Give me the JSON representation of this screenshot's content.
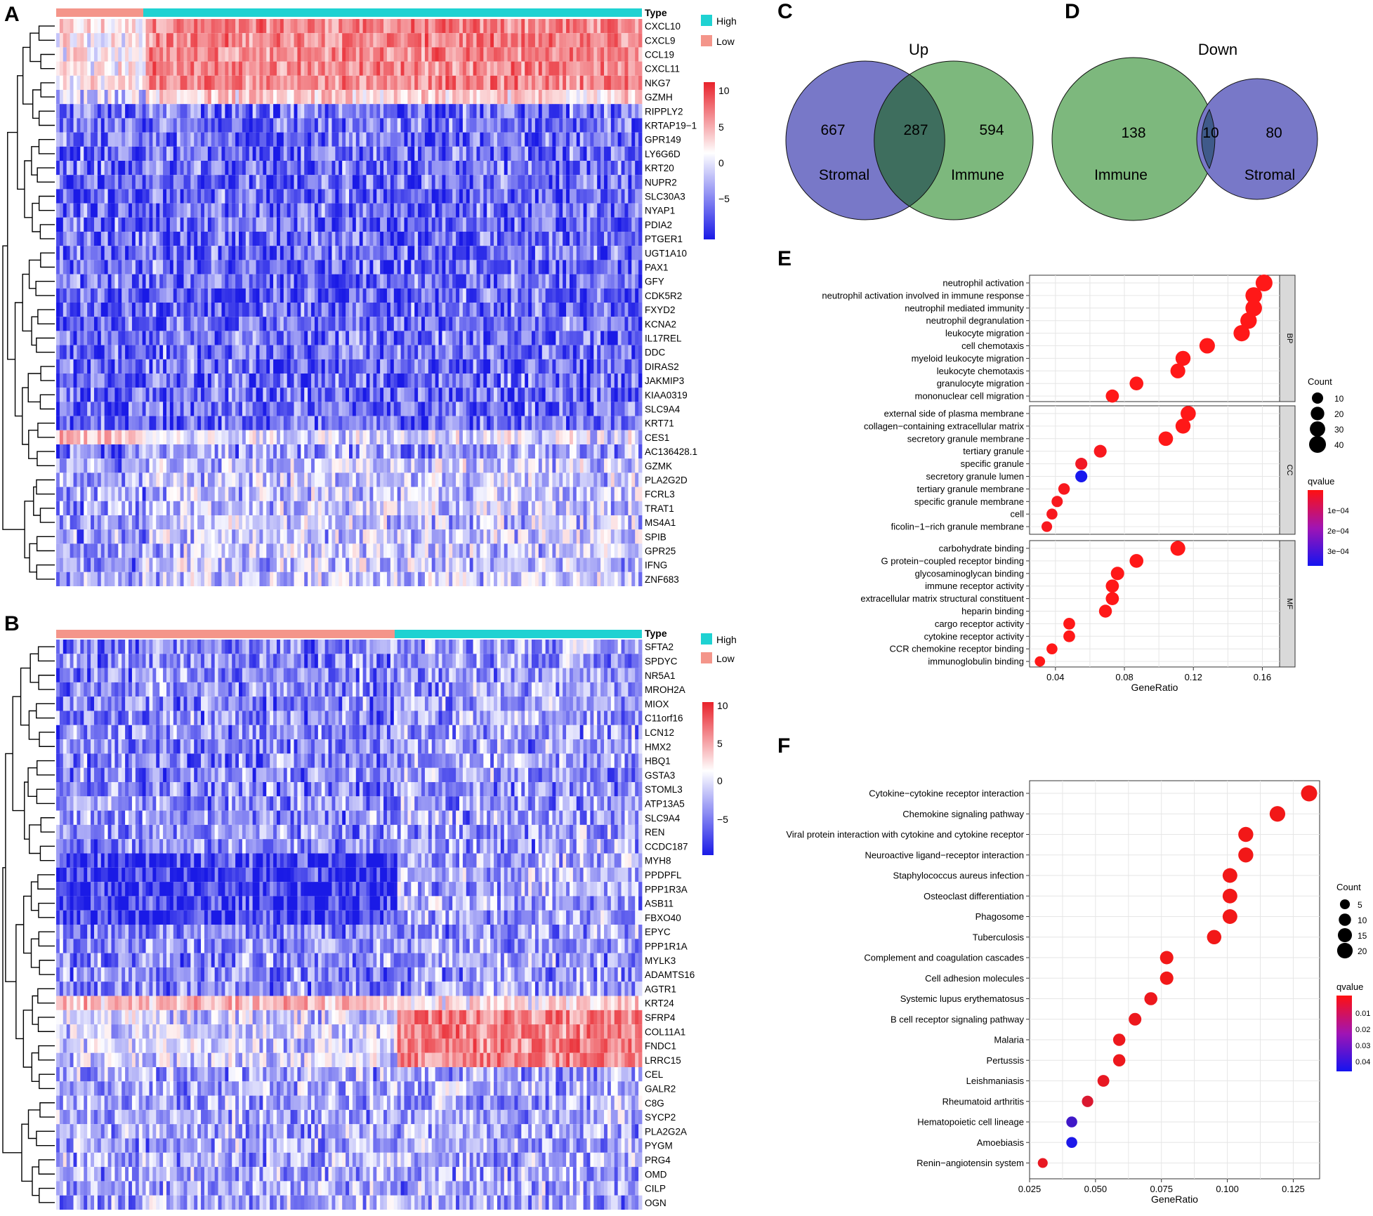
{
  "colors": {
    "high": "#1fd2d2",
    "low": "#f4958a",
    "heat_red": "#e8222b",
    "heat_blue": "#1a1ae6",
    "venn_blue": "#7878c8",
    "venn_green": "#7db87d",
    "venn_overlap_up": "#3e6e5e",
    "venn_overlap_down": "#3f5a8a",
    "dot_red": "#f21818",
    "dot_blue": "#1818ee"
  },
  "panels": {
    "A": {
      "label": "A",
      "type_label": "Type",
      "legend": [
        "High",
        "Low"
      ],
      "scale": [
        "10",
        "5",
        "0",
        "−5"
      ],
      "genes": [
        "CXCL10",
        "CXCL9",
        "CCL19",
        "CXCL11",
        "NKG7",
        "GZMH",
        "RIPPLY2",
        "KRTAP19−1",
        "GPR149",
        "LY6G6D",
        "KRT20",
        "NUPR2",
        "SLC30A3",
        "NYAP1",
        "PDIA2",
        "PTGER1",
        "UGT1A10",
        "PAX1",
        "GFY",
        "CDK5R2",
        "FXYD2",
        "KCNA2",
        "IL17REL",
        "DDC",
        "DIRAS2",
        "JAKMIP3",
        "KIAA0319",
        "SLC9A4",
        "KRT71",
        "CES1",
        "AC136428.1",
        "GZMK",
        "PLA2G2D",
        "FCRL3",
        "TRAT1",
        "MS4A1",
        "SPIB",
        "GPR25",
        "IFNG",
        "ZNF683"
      ]
    },
    "B": {
      "label": "B",
      "type_label": "Type",
      "legend": [
        "High",
        "Low"
      ],
      "scale": [
        "10",
        "5",
        "0",
        "−5"
      ],
      "genes": [
        "SFTA2",
        "SPDYC",
        "NR5A1",
        "MROH2A",
        "MIOX",
        "C11orf16",
        "LCN12",
        "HMX2",
        "HBQ1",
        "GSTA3",
        "STOML3",
        "ATP13A5",
        "SLC9A4",
        "REN",
        "CCDC187",
        "MYH8",
        "PPDPFL",
        "PPP1R3A",
        "ASB11",
        "FBXO40",
        "EPYC",
        "PPP1R1A",
        "MYLK3",
        "ADAMTS16",
        "AGTR1",
        "KRT24",
        "SFRP4",
        "COL11A1",
        "FNDC1",
        "LRRC15",
        "CEL",
        "GALR2",
        "C8G",
        "SYCP2",
        "PLA2G2A",
        "PYGM",
        "PRG4",
        "OMD",
        "CILP",
        "OGN"
      ]
    },
    "C": {
      "label": "C",
      "title": "Up",
      "left_value": "667",
      "overlap_value": "287",
      "right_value": "594",
      "left_name": "Stromal",
      "right_name": "Immune"
    },
    "D": {
      "label": "D",
      "title": "Down",
      "left_value": "138",
      "overlap_value": "10",
      "right_value": "80",
      "left_name": "Immune",
      "right_name": "Stromal"
    },
    "E": {
      "label": "E"
    },
    "F": {
      "label": "F"
    }
  },
  "chart_data": [
    {
      "panel": "E",
      "type": "scatter",
      "xlabel": "GeneRatio",
      "x_ticks": [
        "0.04",
        "0.08",
        "0.12",
        "0.16"
      ],
      "xlim": [
        0.025,
        0.17
      ],
      "size_legend": {
        "title": "Count",
        "values": [
          "10",
          "20",
          "30",
          "40"
        ]
      },
      "color_legend": {
        "title": "qvalue",
        "ticks": [
          "1e−04",
          "2e−04",
          "3e−04"
        ]
      },
      "facets": [
        {
          "name": "BP",
          "terms": [
            {
              "label": "neutrophil activation",
              "x": 0.161,
              "count": 40,
              "q": 1e-05
            },
            {
              "label": "neutrophil activation involved in immune response",
              "x": 0.155,
              "count": 38,
              "q": 1e-05
            },
            {
              "label": "neutrophil mediated immunity",
              "x": 0.155,
              "count": 38,
              "q": 1e-05
            },
            {
              "label": "neutrophil degranulation",
              "x": 0.152,
              "count": 37,
              "q": 1e-05
            },
            {
              "label": "leukocyte migration",
              "x": 0.148,
              "count": 36,
              "q": 1e-05
            },
            {
              "label": "cell chemotaxis",
              "x": 0.128,
              "count": 31,
              "q": 1e-05
            },
            {
              "label": "myeloid leukocyte migration",
              "x": 0.114,
              "count": 28,
              "q": 1e-05
            },
            {
              "label": "leukocyte chemotaxis",
              "x": 0.111,
              "count": 27,
              "q": 1e-05
            },
            {
              "label": "granulocyte migration",
              "x": 0.087,
              "count": 21,
              "q": 1e-05
            },
            {
              "label": "mononuclear cell migration",
              "x": 0.073,
              "count": 18,
              "q": 1e-05
            }
          ]
        },
        {
          "name": "CC",
          "terms": [
            {
              "label": "external side of plasma membrane",
              "x": 0.117,
              "count": 29,
              "q": 1e-05
            },
            {
              "label": "collagen−containing extracellular matrix",
              "x": 0.114,
              "count": 28,
              "q": 1e-05
            },
            {
              "label": "secretory granule membrane",
              "x": 0.104,
              "count": 25,
              "q": 1e-05
            },
            {
              "label": "tertiary granule",
              "x": 0.066,
              "count": 16,
              "q": 2e-05
            },
            {
              "label": "specific granule",
              "x": 0.055,
              "count": 13,
              "q": 3e-05
            },
            {
              "label": "secretory granule lumen",
              "x": 0.055,
              "count": 13,
              "q": 0.00035
            },
            {
              "label": "tertiary granule membrane",
              "x": 0.045,
              "count": 11,
              "q": 2e-05
            },
            {
              "label": "specific granule membrane",
              "x": 0.041,
              "count": 10,
              "q": 2e-05
            },
            {
              "label": "cell",
              "x": 0.038,
              "count": 9,
              "q": 2e-05
            },
            {
              "label": "ficolin−1−rich granule membrane",
              "x": 0.035,
              "count": 8,
              "q": 2e-05
            }
          ]
        },
        {
          "name": "MF",
          "terms": [
            {
              "label": "carbohydrate binding",
              "x": 0.111,
              "count": 27,
              "q": 1e-05
            },
            {
              "label": "G protein−coupled receptor binding",
              "x": 0.087,
              "count": 21,
              "q": 1e-05
            },
            {
              "label": "glycosaminoglycan binding",
              "x": 0.076,
              "count": 19,
              "q": 1e-05
            },
            {
              "label": "immune receptor activity",
              "x": 0.073,
              "count": 18,
              "q": 1e-05
            },
            {
              "label": "extracellular matrix structural constituent",
              "x": 0.073,
              "count": 18,
              "q": 1e-05
            },
            {
              "label": "heparin binding",
              "x": 0.069,
              "count": 17,
              "q": 1e-05
            },
            {
              "label": "cargo receptor activity",
              "x": 0.048,
              "count": 12,
              "q": 1e-05
            },
            {
              "label": "cytokine receptor activity",
              "x": 0.048,
              "count": 12,
              "q": 1e-05
            },
            {
              "label": "CCR chemokine receptor binding",
              "x": 0.038,
              "count": 9,
              "q": 1e-05
            },
            {
              "label": "immunoglobulin binding",
              "x": 0.031,
              "count": 7,
              "q": 1e-05
            }
          ]
        }
      ]
    },
    {
      "panel": "F",
      "type": "scatter",
      "xlabel": "GeneRatio",
      "x_ticks": [
        "0.025",
        "0.050",
        "0.075",
        "0.100",
        "0.125"
      ],
      "xlim": [
        0.025,
        0.135
      ],
      "size_legend": {
        "title": "Count",
        "values": [
          "5",
          "10",
          "15",
          "20"
        ]
      },
      "color_legend": {
        "title": "qvalue",
        "ticks": [
          "0.01",
          "0.02",
          "0.03",
          "0.04"
        ]
      },
      "terms": [
        {
          "label": "Cytokine−cytokine receptor interaction",
          "x": 0.131,
          "count": 22,
          "q": 0.001
        },
        {
          "label": "Chemokine signaling pathway",
          "x": 0.119,
          "count": 20,
          "q": 0.001
        },
        {
          "label": "Viral protein interaction with cytokine and cytokine receptor",
          "x": 0.107,
          "count": 18,
          "q": 0.001
        },
        {
          "label": "Neuroactive ligand−receptor interaction",
          "x": 0.107,
          "count": 18,
          "q": 0.001
        },
        {
          "label": "Staphylococcus aureus infection",
          "x": 0.101,
          "count": 17,
          "q": 0.001
        },
        {
          "label": "Osteoclast differentiation",
          "x": 0.101,
          "count": 17,
          "q": 0.001
        },
        {
          "label": "Phagosome",
          "x": 0.101,
          "count": 17,
          "q": 0.001
        },
        {
          "label": "Tuberculosis",
          "x": 0.095,
          "count": 16,
          "q": 0.001
        },
        {
          "label": "Complement and coagulation cascades",
          "x": 0.077,
          "count": 13,
          "q": 0.001
        },
        {
          "label": "Cell adhesion molecules",
          "x": 0.077,
          "count": 13,
          "q": 0.001
        },
        {
          "label": "Systemic lupus erythematosus",
          "x": 0.071,
          "count": 12,
          "q": 0.002
        },
        {
          "label": "B cell receptor signaling pathway",
          "x": 0.065,
          "count": 11,
          "q": 0.002
        },
        {
          "label": "Malaria",
          "x": 0.059,
          "count": 10,
          "q": 0.002
        },
        {
          "label": "Pertussis",
          "x": 0.059,
          "count": 10,
          "q": 0.002
        },
        {
          "label": "Leishmaniasis",
          "x": 0.053,
          "count": 9,
          "q": 0.003
        },
        {
          "label": "Rheumatoid arthritis",
          "x": 0.047,
          "count": 8,
          "q": 0.006
        },
        {
          "label": "Hematopoietic cell lineage",
          "x": 0.041,
          "count": 7,
          "q": 0.038
        },
        {
          "label": "Amoebiasis",
          "x": 0.041,
          "count": 7,
          "q": 0.045
        },
        {
          "label": "Renin−angiotensin system",
          "x": 0.03,
          "count": 5,
          "q": 0.003
        }
      ]
    }
  ]
}
